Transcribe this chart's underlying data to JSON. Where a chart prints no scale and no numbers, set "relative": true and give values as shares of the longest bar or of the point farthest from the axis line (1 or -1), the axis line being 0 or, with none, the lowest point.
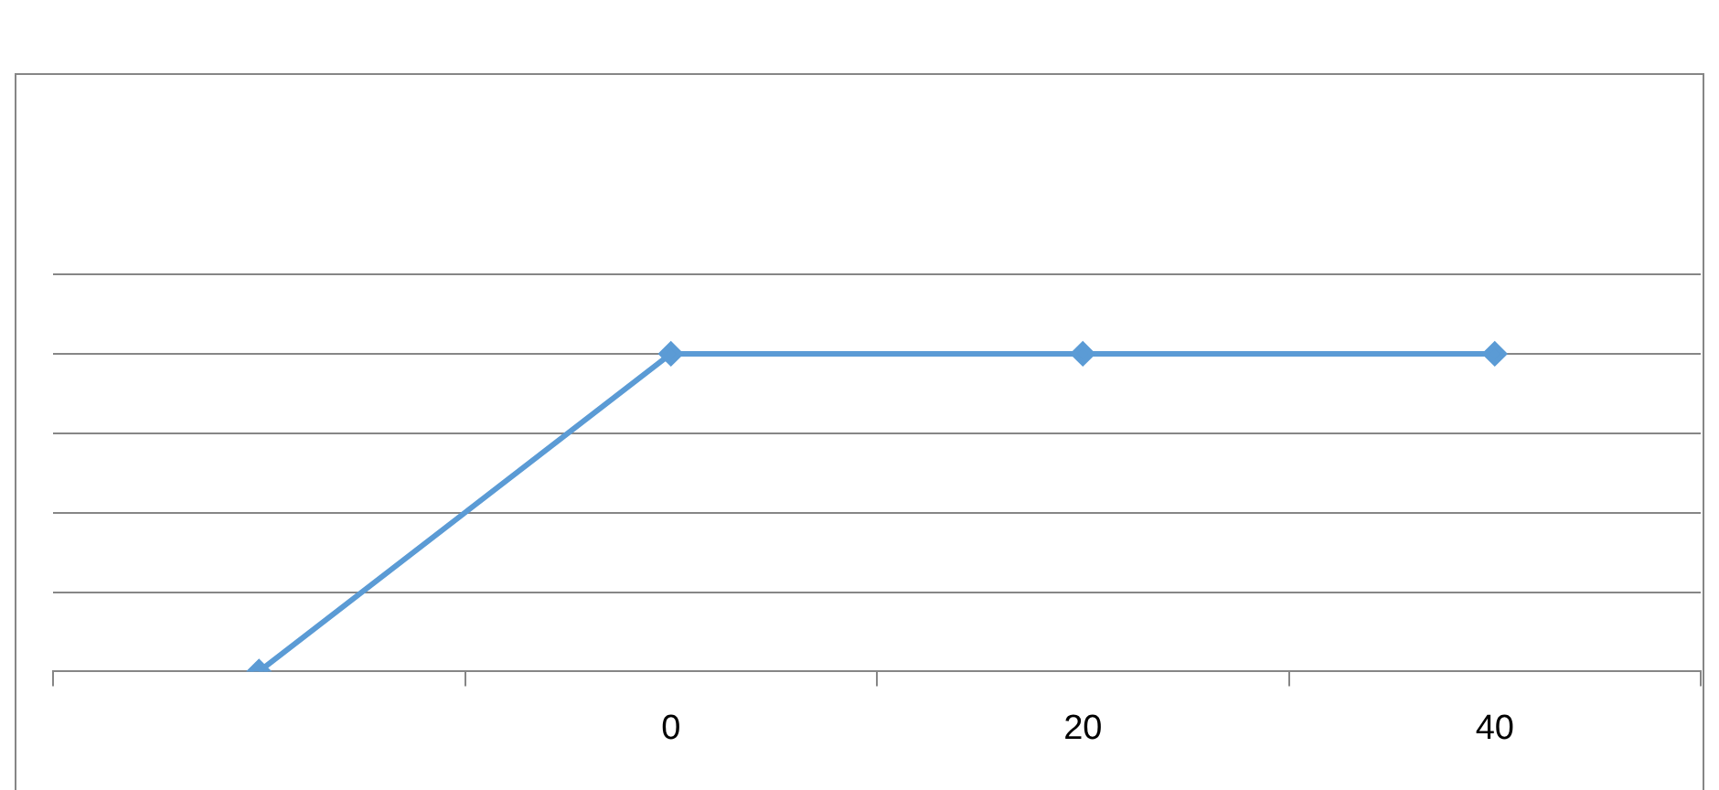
{
  "chart_data": {
    "type": "line",
    "relative": true,
    "categories": [
      null,
      "0",
      "20",
      "40"
    ],
    "series": [
      {
        "color": "#5b9bd5",
        "values": [
          0,
          1,
          1,
          1
        ]
      }
    ],
    "marker": "diamond",
    "line_style": "solid",
    "grid": "y",
    "legend": false
  }
}
